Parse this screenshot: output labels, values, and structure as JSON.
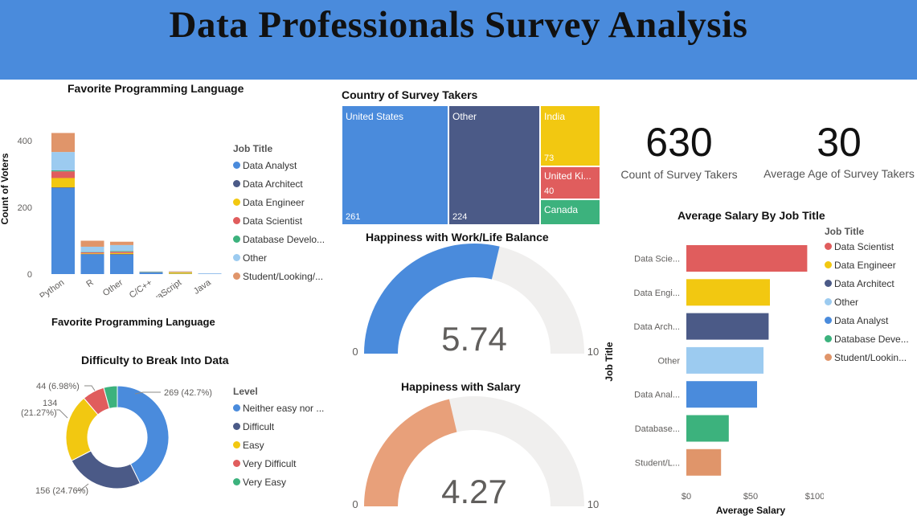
{
  "header": {
    "title": "Data Professionals Survey Analysis",
    "banner_color": "#4a8bdc"
  },
  "colors": {
    "Data Analyst": "#4a8bdc",
    "Data Architect": "#4b5a87",
    "Data Engineer": "#f2c811",
    "Data Scientist": "#e05d5d",
    "Database Developer": "#3cb27d",
    "Other": "#9ccbf0",
    "Student/Looking": "#e0956a",
    "gauge_track": "#f0efee",
    "salary_gauge": "#e8a07a"
  },
  "fav_lang": {
    "title": "Favorite Programming Language",
    "xlabel": "Favorite Programming Language",
    "ylabel": "Count of Voters",
    "legend_title": "Job Title",
    "legend": [
      "Data Analyst",
      "Data Architect",
      "Data Engineer",
      "Data Scientist",
      "Database Develo...",
      "Other",
      "Student/Looking/..."
    ]
  },
  "country": {
    "title": "Country of Survey Takers",
    "cells": [
      {
        "name": "United States",
        "value": "261"
      },
      {
        "name": "Other",
        "value": "224"
      },
      {
        "name": "India",
        "value": "73"
      },
      {
        "name": "United Ki...",
        "value": "40"
      },
      {
        "name": "Canada",
        "value": ""
      }
    ]
  },
  "kpis": {
    "count": {
      "value": "630",
      "label": "Count of Survey Takers"
    },
    "age": {
      "value": "30",
      "label": "Average Age of Survey Takers"
    }
  },
  "gauge_wlb": {
    "title": "Happiness with Work/Life Balance",
    "value": 5.74,
    "display": "5.74",
    "min_label": "0",
    "max_label": "10",
    "max": 10
  },
  "gauge_salary": {
    "title": "Happiness with Salary",
    "value": 4.27,
    "display": "4.27",
    "min_label": "0",
    "max_label": "10",
    "max": 10
  },
  "difficulty": {
    "title": "Difficulty to Break Into Data",
    "legend_title": "Level",
    "legend": [
      "Neither easy nor ...",
      "Difficult",
      "Easy",
      "Very Difficult",
      "Very Easy"
    ],
    "labels": {
      "neither": "269 (42.7%)",
      "difficult": "156 (24.76%)",
      "easy_line1": "134",
      "easy_line2": "(21.27%)",
      "very_difficult": "44 (6.98%)"
    }
  },
  "salary": {
    "title": "Average Salary By Job Title",
    "xlabel": "Average Salary",
    "ylabel": "Job Title",
    "legend_title": "Job Title",
    "legend": [
      "Data Scientist",
      "Data Engineer",
      "Data Architect",
      "Other",
      "Data Analyst",
      "Database Deve...",
      "Student/Lookin..."
    ]
  },
  "chart_data": [
    {
      "type": "bar",
      "stacked": true,
      "title": "Favorite Programming Language",
      "xlabel": "Favorite Programming Language",
      "ylabel": "Count of Voters",
      "categories": [
        "Python",
        "R",
        "Other",
        "C/C++",
        "JavaScript",
        "Java"
      ],
      "ylim": [
        0,
        440
      ],
      "yticks": [
        0,
        200,
        400
      ],
      "series": [
        {
          "name": "Data Analyst",
          "values": [
            258,
            59,
            58,
            6,
            1,
            1
          ]
        },
        {
          "name": "Data Architect",
          "values": [
            2,
            1,
            2,
            0,
            0,
            0
          ]
        },
        {
          "name": "Data Engineer",
          "values": [
            28,
            2,
            3,
            1,
            4,
            0
          ]
        },
        {
          "name": "Data Scientist",
          "values": [
            20,
            3,
            4,
            0,
            0,
            0
          ]
        },
        {
          "name": "Database Developer",
          "values": [
            3,
            1,
            2,
            0,
            0,
            0
          ]
        },
        {
          "name": "Other",
          "values": [
            55,
            16,
            18,
            1,
            1,
            1
          ]
        },
        {
          "name": "Student/Looking/...",
          "values": [
            57,
            18,
            10,
            0,
            2,
            0
          ]
        }
      ]
    },
    {
      "type": "table",
      "subtype": "treemap",
      "title": "Country of Survey Takers",
      "categories": [
        "United States",
        "Other",
        "India",
        "United Ki...",
        "Canada"
      ],
      "values": [
        261,
        224,
        73,
        40,
        null
      ]
    },
    {
      "type": "pie",
      "subtype": "donut",
      "title": "Difficulty to Break Into Data",
      "categories": [
        "Neither easy nor ...",
        "Difficult",
        "Easy",
        "Very Difficult",
        "Very Easy"
      ],
      "values": [
        269,
        156,
        134,
        44,
        27
      ],
      "percent": [
        42.7,
        24.76,
        21.27,
        6.98,
        4.29
      ]
    },
    {
      "type": "bar",
      "orientation": "horizontal",
      "title": "Average Salary By Job Title",
      "xlabel": "Average Salary",
      "ylabel": "Job Title",
      "categories": [
        "Data Scie...",
        "Data Engi...",
        "Data Arch...",
        "Other",
        "Data Anal...",
        "Database...",
        "Student/L..."
      ],
      "values": [
        94,
        65,
        64,
        60,
        55,
        33,
        27
      ],
      "xlim": [
        0,
        100
      ],
      "xticks": [
        "$0",
        "$50",
        "$100"
      ]
    }
  ]
}
